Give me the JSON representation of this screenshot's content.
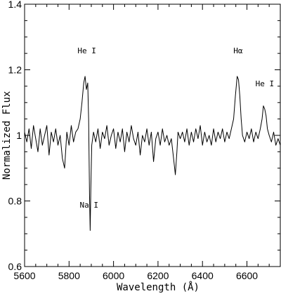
{
  "chart_data": {
    "type": "line",
    "title": "",
    "xlabel": "Wavelength (Å)",
    "ylabel": "Normalized Flux",
    "xlim": [
      5600,
      6750
    ],
    "ylim": [
      0.6,
      1.4
    ],
    "x_ticks": [
      5600,
      5800,
      6000,
      6200,
      6400,
      6600
    ],
    "y_ticks": [
      0.6,
      0.8,
      1.0,
      1.2,
      1.4
    ],
    "x_tick_labels": [
      "5600",
      "5800",
      "6000",
      "6200",
      "6400",
      "6600"
    ],
    "y_tick_labels": [
      "0.6",
      "0.8",
      "1",
      "1.2",
      "1.4"
    ],
    "grid": false,
    "legend": "none",
    "annotations": [
      {
        "text": "He I",
        "x": 5880,
        "y": 1.25
      },
      {
        "text": "Hα",
        "x": 6560,
        "y": 1.25
      },
      {
        "text": "He I",
        "x": 6680,
        "y": 1.15
      },
      {
        "text": "Na I",
        "x": 5890,
        "y": 0.78
      }
    ],
    "series": [
      {
        "values": [
          [
            5600,
            1.01
          ],
          [
            5610,
            0.98
          ],
          [
            5620,
            1.02
          ],
          [
            5630,
            0.96
          ],
          [
            5640,
            1.03
          ],
          [
            5650,
            0.99
          ],
          [
            5660,
            0.95
          ],
          [
            5670,
            1.02
          ],
          [
            5680,
            0.97
          ],
          [
            5690,
            1.0
          ],
          [
            5700,
            1.03
          ],
          [
            5710,
            0.94
          ],
          [
            5720,
            1.01
          ],
          [
            5730,
            0.98
          ],
          [
            5740,
            1.02
          ],
          [
            5750,
            0.97
          ],
          [
            5760,
            1.0
          ],
          [
            5770,
            0.93
          ],
          [
            5780,
            0.9
          ],
          [
            5790,
            1.01
          ],
          [
            5800,
            0.97
          ],
          [
            5810,
            1.03
          ],
          [
            5820,
            0.98
          ],
          [
            5830,
            1.01
          ],
          [
            5840,
            1.02
          ],
          [
            5850,
            1.05
          ],
          [
            5858,
            1.1
          ],
          [
            5866,
            1.16
          ],
          [
            5872,
            1.18
          ],
          [
            5878,
            1.14
          ],
          [
            5884,
            1.16
          ],
          [
            5888,
            1.05
          ],
          [
            5892,
            0.82
          ],
          [
            5895,
            0.71
          ],
          [
            5898,
            0.84
          ],
          [
            5902,
            0.97
          ],
          [
            5910,
            1.01
          ],
          [
            5920,
            0.98
          ],
          [
            5930,
            1.02
          ],
          [
            5940,
            0.96
          ],
          [
            5950,
            1.01
          ],
          [
            5960,
            0.99
          ],
          [
            5970,
            1.03
          ],
          [
            5980,
            0.97
          ],
          [
            5990,
            1.0
          ],
          [
            6000,
            1.02
          ],
          [
            6010,
            0.96
          ],
          [
            6020,
            1.01
          ],
          [
            6030,
            0.98
          ],
          [
            6040,
            1.02
          ],
          [
            6050,
            0.95
          ],
          [
            6060,
            1.01
          ],
          [
            6070,
            0.98
          ],
          [
            6080,
            1.03
          ],
          [
            6090,
            0.99
          ],
          [
            6100,
            0.97
          ],
          [
            6110,
            1.01
          ],
          [
            6120,
            0.94
          ],
          [
            6130,
            1.0
          ],
          [
            6140,
            0.98
          ],
          [
            6150,
            1.02
          ],
          [
            6160,
            0.97
          ],
          [
            6170,
            1.01
          ],
          [
            6180,
            0.92
          ],
          [
            6190,
            0.99
          ],
          [
            6200,
            1.01
          ],
          [
            6210,
            0.97
          ],
          [
            6220,
            1.02
          ],
          [
            6230,
            0.98
          ],
          [
            6240,
            1.0
          ],
          [
            6250,
            0.97
          ],
          [
            6260,
            0.99
          ],
          [
            6270,
            0.93
          ],
          [
            6278,
            0.88
          ],
          [
            6285,
            0.95
          ],
          [
            6290,
            1.01
          ],
          [
            6300,
            0.99
          ],
          [
            6310,
            1.01
          ],
          [
            6320,
            0.98
          ],
          [
            6330,
            1.02
          ],
          [
            6340,
            0.97
          ],
          [
            6350,
            1.01
          ],
          [
            6360,
            0.98
          ],
          [
            6370,
            1.02
          ],
          [
            6380,
            0.99
          ],
          [
            6390,
            1.03
          ],
          [
            6400,
            0.97
          ],
          [
            6410,
            1.01
          ],
          [
            6420,
            0.98
          ],
          [
            6430,
            1.0
          ],
          [
            6440,
            0.97
          ],
          [
            6450,
            1.02
          ],
          [
            6460,
            0.98
          ],
          [
            6470,
            1.01
          ],
          [
            6480,
            0.99
          ],
          [
            6490,
            1.02
          ],
          [
            6500,
            0.98
          ],
          [
            6510,
            1.01
          ],
          [
            6520,
            0.99
          ],
          [
            6530,
            1.02
          ],
          [
            6540,
            1.05
          ],
          [
            6548,
            1.12
          ],
          [
            6556,
            1.18
          ],
          [
            6562,
            1.17
          ],
          [
            6568,
            1.12
          ],
          [
            6574,
            1.05
          ],
          [
            6580,
            1.0
          ],
          [
            6590,
            0.98
          ],
          [
            6600,
            1.01
          ],
          [
            6610,
            0.99
          ],
          [
            6620,
            1.02
          ],
          [
            6630,
            0.98
          ],
          [
            6640,
            1.01
          ],
          [
            6650,
            0.99
          ],
          [
            6660,
            1.02
          ],
          [
            6668,
            1.05
          ],
          [
            6674,
            1.09
          ],
          [
            6680,
            1.08
          ],
          [
            6686,
            1.06
          ],
          [
            6692,
            1.02
          ],
          [
            6700,
            1.0
          ],
          [
            6710,
            0.98
          ],
          [
            6720,
            1.01
          ],
          [
            6730,
            0.97
          ],
          [
            6740,
            0.99
          ],
          [
            6750,
            0.97
          ]
        ]
      }
    ]
  }
}
